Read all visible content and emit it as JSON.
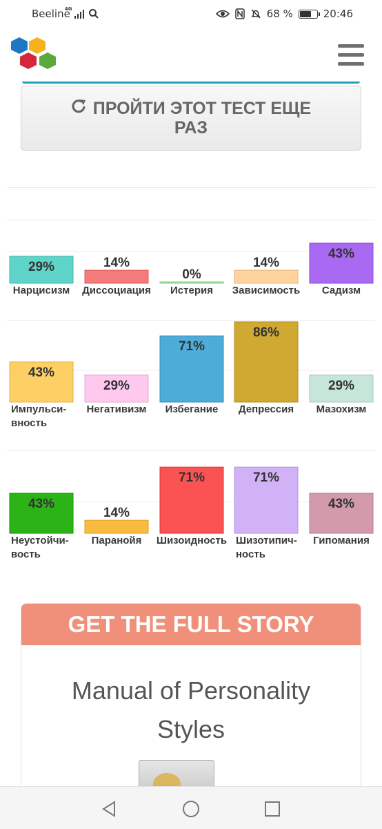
{
  "status_bar": {
    "carrier": "Beeline",
    "network": "4G",
    "battery": "68 %",
    "battery_level": 0.68,
    "time": "20:46"
  },
  "header": {
    "logo_icon": "hexagon-cluster-logo",
    "menu_icon": "hamburger-menu-icon"
  },
  "retake": {
    "label": "ПРОЙТИ ЭТОТ ТЕСТ ЕЩЕ РАЗ",
    "icon": "refresh-icon"
  },
  "chart_data": [
    {
      "type": "bar",
      "categories": [
        "Нарцисизм",
        "Диссоциация",
        "Истерия",
        "Зависимость",
        "Садизм"
      ],
      "values": [
        29,
        14,
        0,
        14,
        43
      ],
      "value_labels": [
        "29%",
        "14%",
        "0%",
        "14%",
        "43%"
      ],
      "colors": [
        "#5fd4c8",
        "#f57a7a",
        "#a6e7a6",
        "#ffd39b",
        "#a969f2"
      ],
      "ylim": [
        0,
        100
      ]
    },
    {
      "type": "bar",
      "categories": [
        "Импульси-вность",
        "Негативизм",
        "Избегание",
        "Депрессия",
        "Мазохизм"
      ],
      "values": [
        43,
        29,
        71,
        86,
        29
      ],
      "value_labels": [
        "43%",
        "29%",
        "71%",
        "86%",
        "29%"
      ],
      "colors": [
        "#fdd066",
        "#ffc8ef",
        "#4eacd8",
        "#d0a932",
        "#c6e6d9"
      ],
      "ylim": [
        0,
        100
      ]
    },
    {
      "type": "bar",
      "categories": [
        "Неустойчи-вость",
        "Паранойя",
        "Шизоидность",
        "Шизотипич-ность",
        "Гипомания"
      ],
      "values": [
        43,
        14,
        71,
        71,
        43
      ],
      "value_labels": [
        "43%",
        "14%",
        "71%",
        "71%",
        "43%"
      ],
      "colors": [
        "#2cb416",
        "#f9bb40",
        "#fb5252",
        "#d1b2f7",
        "#d39aac"
      ],
      "ylim": [
        0,
        100
      ]
    }
  ],
  "promo": {
    "banner": "GET THE FULL STORY",
    "title": "Manual of Personality Styles"
  },
  "nav": {
    "back_icon": "back-triangle-icon",
    "home_icon": "home-circle-icon",
    "recents_icon": "recents-square-icon"
  }
}
